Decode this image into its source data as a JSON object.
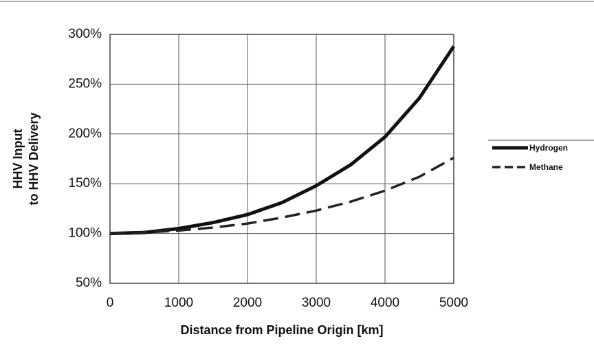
{
  "chart_data": {
    "type": "line",
    "xlabel": "Distance from Pipeline Origin [km]",
    "ylabel": [
      "HHV Input",
      "to HHV Delivery"
    ],
    "x": [
      0,
      500,
      1000,
      1500,
      2000,
      2500,
      3000,
      3500,
      4000,
      4500,
      5000
    ],
    "series": [
      {
        "name": "Hydrogen",
        "color": "#111111",
        "line_style": "solid",
        "values": [
          100,
          101,
          105,
          111,
          119,
          131,
          148,
          169,
          197,
          236,
          288
        ]
      },
      {
        "name": "Methane",
        "color": "#222222",
        "line_style": "dashed",
        "values": [
          100,
          101,
          103,
          106,
          110,
          116,
          123,
          132,
          143,
          157,
          176
        ]
      }
    ],
    "xlim": [
      0,
      5000
    ],
    "xticks": [
      0,
      1000,
      2000,
      3000,
      4000,
      5000
    ],
    "ylim": [
      50,
      300
    ],
    "yticks": [
      {
        "value": 50,
        "label": "50%"
      },
      {
        "value": 100,
        "label": "100%"
      },
      {
        "value": 150,
        "label": "150%"
      },
      {
        "value": 200,
        "label": "200%"
      },
      {
        "value": 250,
        "label": "250%"
      },
      {
        "value": 300,
        "label": "300%"
      }
    ],
    "grid": true,
    "legend": "right"
  }
}
